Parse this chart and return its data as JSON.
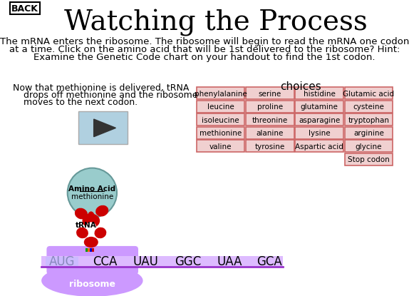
{
  "title": "Watching the Process",
  "back_label": "BACK",
  "paragraph_line1": "The mRNA enters the ribosome. The ribosome will begin to read the mRNA one codon",
  "paragraph_line2": "at a time. Click on the amino acid that will be 1st delivered to the ribosome? Hint:",
  "paragraph_line3": "Examine the Genetic Code chart on your handout to find the 1st codon.",
  "side_text_line1": "Now that methionine is delivered, tRNA",
  "side_text_line2": "drops off methionine and the ribosome",
  "side_text_line3": "moves to the next codon.",
  "choices_label": "choices",
  "choices_grid": [
    [
      "phenylalanine",
      "serine",
      "histidine",
      "Glutamic acid"
    ],
    [
      "leucine",
      "proline",
      "glutamine",
      "cysteine"
    ],
    [
      "isoleucine",
      "threonine",
      "asparagine",
      "tryptophan"
    ],
    [
      "methionine",
      "alanine",
      "lysine",
      "arginine"
    ],
    [
      "valine",
      "tyrosine",
      "Aspartic acid",
      "glycine"
    ],
    [
      "",
      "",
      "",
      "Stop codon"
    ]
  ],
  "codons": [
    "AUG",
    "CCA",
    "UAU",
    "GGC",
    "UAA",
    "GCA"
  ],
  "bg_color": "#ffffff",
  "title_fontsize": 28,
  "choice_box_color": "#f0d0d0",
  "choice_border_color": "#cc6666",
  "ribosome_color": "#cc99ff",
  "amino_acid_circle_color": "#99cccc",
  "trna_color": "#cc0000",
  "codon_aug_color": "#ccbbff",
  "ribosome_label_color": "#ffffff",
  "play_button_color": "#b0d0e0",
  "anticodon_colors": [
    "#009900",
    "#ff6600",
    "#0000cc",
    "#cc0000"
  ]
}
